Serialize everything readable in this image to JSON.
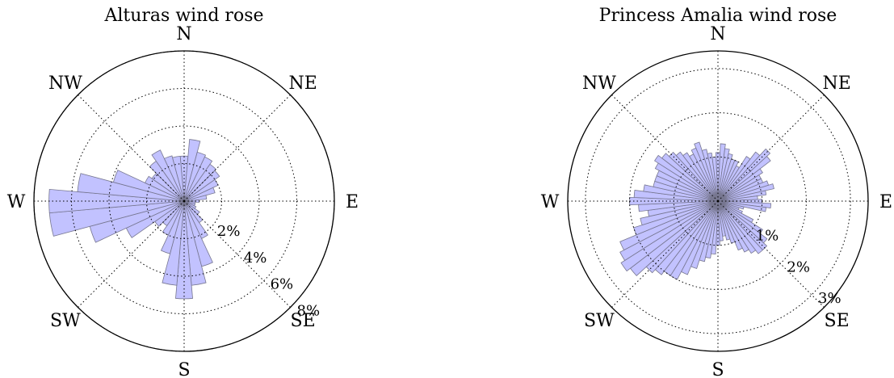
{
  "chart_data": [
    {
      "type": "bar",
      "subtype": "polar-wind-rose",
      "title": "Alturas wind rose",
      "directions": [
        "N",
        "NE",
        "E",
        "SE",
        "S",
        "SW",
        "W",
        "NW"
      ],
      "rticks": [
        2,
        4,
        6,
        8
      ],
      "rtick_labels": [
        "2%",
        "4%",
        "6%",
        "8%"
      ],
      "rmax": 8,
      "bar_color": "#bbbbff",
      "angle_unit": "degrees clockwise from north",
      "angles": [
        0,
        10,
        20,
        30,
        40,
        50,
        60,
        70,
        80,
        90,
        100,
        110,
        120,
        130,
        140,
        150,
        160,
        170,
        180,
        190,
        200,
        210,
        220,
        230,
        240,
        250,
        260,
        270,
        280,
        290,
        300,
        310,
        320,
        330,
        340,
        350
      ],
      "values": [
        2.4,
        3.3,
        2.7,
        2.6,
        2.4,
        2.3,
        2.0,
        1.7,
        1.2,
        0.8,
        0.6,
        0.6,
        0.7,
        1.0,
        1.4,
        2.2,
        3.6,
        4.5,
        5.2,
        4.5,
        2.9,
        2.0,
        1.6,
        1.9,
        3.4,
        5.2,
        7.2,
        7.2,
        5.7,
        3.9,
        2.3,
        2.1,
        2.6,
        3.0,
        2.5,
        2.4
      ]
    },
    {
      "type": "bar",
      "subtype": "polar-wind-rose",
      "title": "Princess Amalia wind rose",
      "directions": [
        "N",
        "NE",
        "E",
        "SE",
        "S",
        "SW",
        "W",
        "NW"
      ],
      "rticks": [
        1,
        2,
        3
      ],
      "rtick_labels": [
        "1%",
        "2%",
        "3%"
      ],
      "rmax": 3.4,
      "bar_color": "#bbbbff",
      "angle_unit": "degrees clockwise from north",
      "angles": [
        0,
        5,
        10,
        15,
        20,
        25,
        30,
        35,
        40,
        45,
        50,
        55,
        60,
        65,
        70,
        75,
        80,
        85,
        90,
        95,
        100,
        105,
        110,
        115,
        120,
        125,
        130,
        135,
        140,
        145,
        150,
        155,
        160,
        165,
        170,
        175,
        180,
        185,
        190,
        195,
        200,
        205,
        210,
        215,
        220,
        225,
        230,
        235,
        240,
        245,
        250,
        255,
        260,
        265,
        270,
        275,
        280,
        285,
        290,
        295,
        300,
        305,
        310,
        315,
        320,
        325,
        330,
        335,
        340,
        345,
        350,
        355
      ],
      "values": [
        1.1,
        1.3,
        1.2,
        1.1,
        1.0,
        1.0,
        0.9,
        1.2,
        1.4,
        1.6,
        1.5,
        1.2,
        1.1,
        1.1,
        1.2,
        1.3,
        1.1,
        0.9,
        1.0,
        1.2,
        1.1,
        0.6,
        0.5,
        0.6,
        0.9,
        1.2,
        1.4,
        1.5,
        1.5,
        1.4,
        1.3,
        1.2,
        1.0,
        0.9,
        0.8,
        0.9,
        1.0,
        1.2,
        1.3,
        1.4,
        1.6,
        1.8,
        2.0,
        2.0,
        2.1,
        2.2,
        2.5,
        2.6,
        2.5,
        2.4,
        2.0,
        1.8,
        1.6,
        1.8,
        2.0,
        1.9,
        1.7,
        1.5,
        1.5,
        1.5,
        1.6,
        1.7,
        1.6,
        1.5,
        1.4,
        1.3,
        1.2,
        1.3,
        1.4,
        1.2,
        1.1,
        1.0
      ]
    }
  ]
}
